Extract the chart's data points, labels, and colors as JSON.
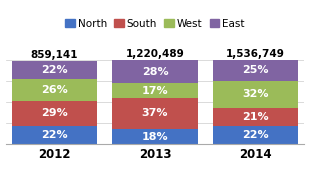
{
  "years": [
    "2012",
    "2013",
    "2014"
  ],
  "totals": [
    "859,141",
    "1,220,489",
    "1,536,749"
  ],
  "series": {
    "North": [
      22,
      18,
      22
    ],
    "South": [
      29,
      37,
      21
    ],
    "West": [
      26,
      17,
      32
    ],
    "East": [
      22,
      28,
      25
    ]
  },
  "colors": {
    "North": "#4472C4",
    "South": "#C0504D",
    "West": "#9BBB59",
    "East": "#8064A2"
  },
  "order": [
    "North",
    "South",
    "West",
    "East"
  ],
  "bar_width": 0.85,
  "background_color": "#FFFFFF",
  "label_fontsize": 8.0,
  "total_fontsize": 7.5,
  "legend_fontsize": 7.5,
  "xtick_fontsize": 8.5,
  "text_color_inside": "#FFFFFF",
  "text_color_total": "#000000",
  "ylim": [
    0,
    125
  ],
  "xlim": [
    -0.48,
    2.48
  ]
}
